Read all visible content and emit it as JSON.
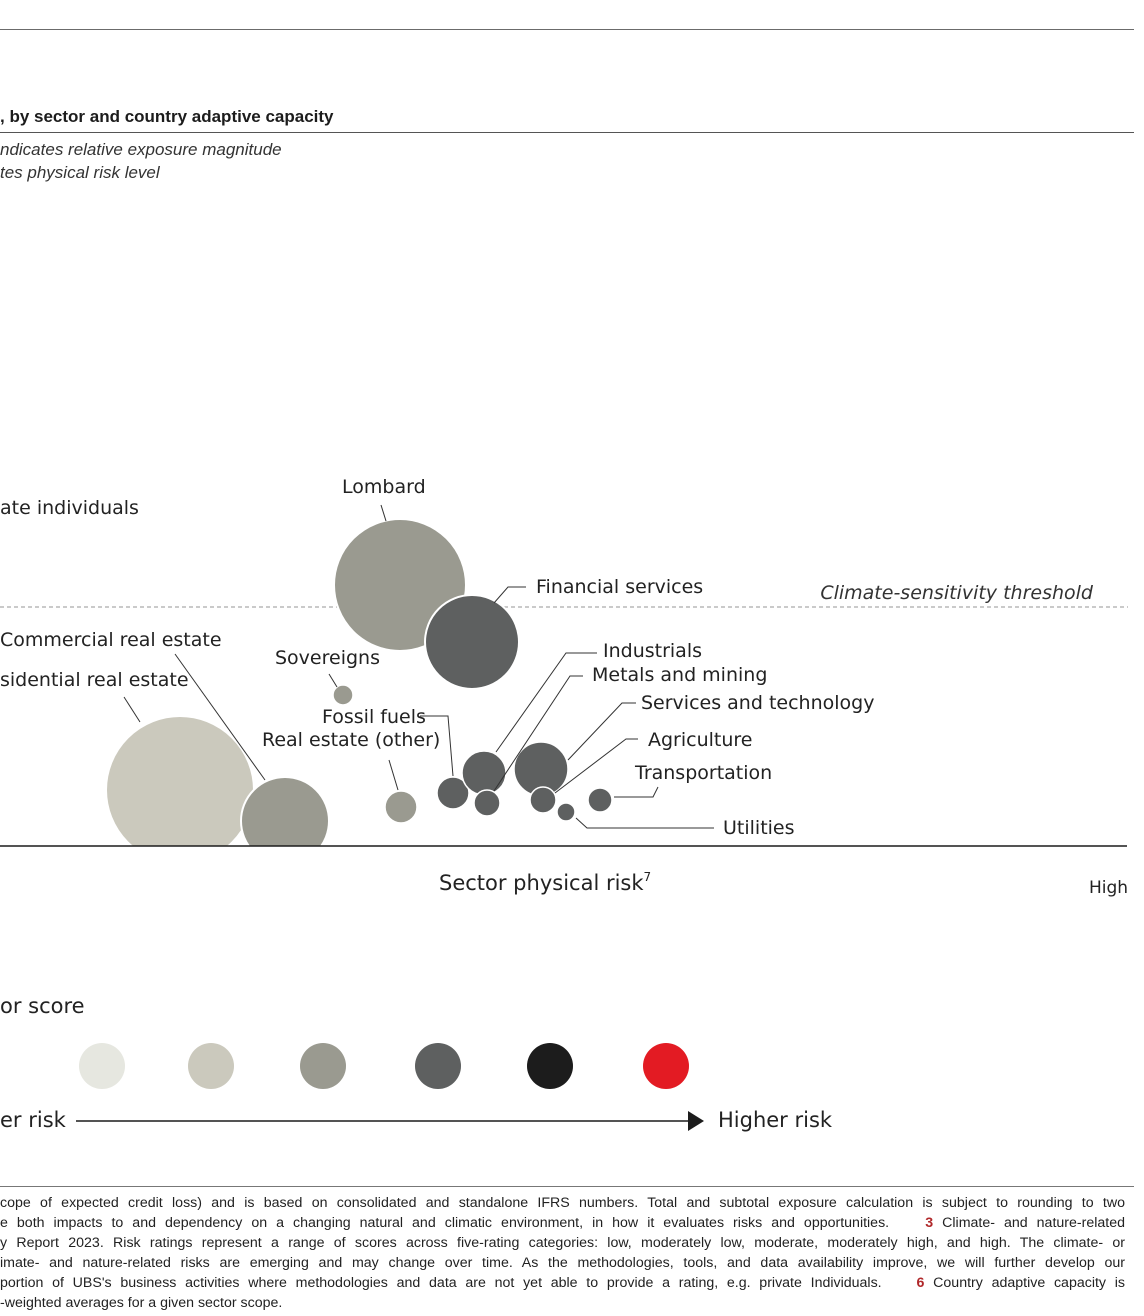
{
  "header": {
    "title": ", by sector and country adaptive capacity",
    "subnote_1": "ndicates relative exposure magnitude",
    "subnote_2": "tes physical risk level"
  },
  "chart_data": {
    "type": "scatter",
    "xlabel": "Sector physical risk",
    "xlabel_superscript": "7",
    "x_end_label": "High",
    "threshold_label": "Climate-sensitivity threshold",
    "point_labels": [
      "ate individuals",
      "Lombard",
      "Financial services",
      "Commercial real estate",
      "sidential real estate",
      "Sovereigns",
      "Fossil fuels",
      "Real estate (other)",
      "Industrials",
      "Metals and mining",
      "Services and technology",
      "Agriculture",
      "Transportation",
      "Utilities"
    ],
    "color_legend": {
      "title": "or score",
      "low_label": "er risk",
      "high_label": "Higher risk",
      "colors": [
        "#e6e7e0",
        "#cbc9bd",
        "#9a9a90",
        "#5e6060",
        "#1c1c1c",
        "#e31b23"
      ]
    },
    "colors": {
      "light": "#cbc9bd",
      "mid": "#9a9a90",
      "dark": "#5e6060"
    }
  },
  "footnotes": {
    "line1": "cope of expected credit loss) and is based on consolidated and standalone IFRS numbers. Total and subtotal exposure calculation is subject to rounding to two",
    "line2_a": "e both impacts to and dependency on a changing natural and climatic environment, in how it evaluates risks and opportunities.",
    "line2_num": "3",
    "line2_b": "Climate- and nature-related",
    "line3": "y Report 2023. Risk ratings represent a range of scores across five-rating categories: low, moderately low, moderate, moderately high, and high. The climate- or",
    "line4": "imate- and nature-related risks are emerging and may change over time. As the methodologies, tools, and data availability improve, we will further develop our",
    "line5_a": "portion of UBS's business activities where methodologies and data are not yet able to provide a rating, e.g. private Individuals.",
    "line5_num": "6",
    "line5_b": "Country adaptive capacity is",
    "line6": "-weighted averages for a given sector scope."
  }
}
